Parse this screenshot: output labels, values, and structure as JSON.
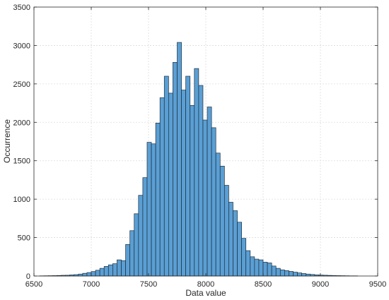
{
  "chart_data": {
    "type": "bar",
    "xlabel": "Data value",
    "ylabel": "Occurrence",
    "xlim": [
      6500,
      9500
    ],
    "ylim": [
      0,
      3500
    ],
    "grid": true,
    "bar_color": "#5a9fd4",
    "edge_color": "#1f2d3a",
    "x_ticks": [
      6500,
      7000,
      7500,
      8000,
      8500,
      9000,
      9500
    ],
    "y_ticks": [
      0,
      500,
      1000,
      1500,
      2000,
      2500,
      3000,
      3500
    ],
    "bin_width": 37.5,
    "bin_start": 6550,
    "values": [
      2,
      3,
      4,
      5,
      7,
      9,
      10,
      14,
      18,
      25,
      35,
      45,
      58,
      75,
      100,
      125,
      145,
      160,
      210,
      200,
      410,
      590,
      810,
      1050,
      1280,
      1740,
      1720,
      1990,
      2320,
      2600,
      2380,
      2780,
      3040,
      2420,
      2600,
      2220,
      2700,
      2480,
      2030,
      2200,
      1930,
      1600,
      1430,
      1180,
      960,
      850,
      700,
      490,
      330,
      250,
      220,
      210,
      180,
      170,
      130,
      100,
      80,
      70,
      60,
      50,
      40,
      32,
      25,
      20,
      15,
      12,
      10,
      8,
      6,
      5,
      4,
      3,
      2,
      2
    ]
  }
}
